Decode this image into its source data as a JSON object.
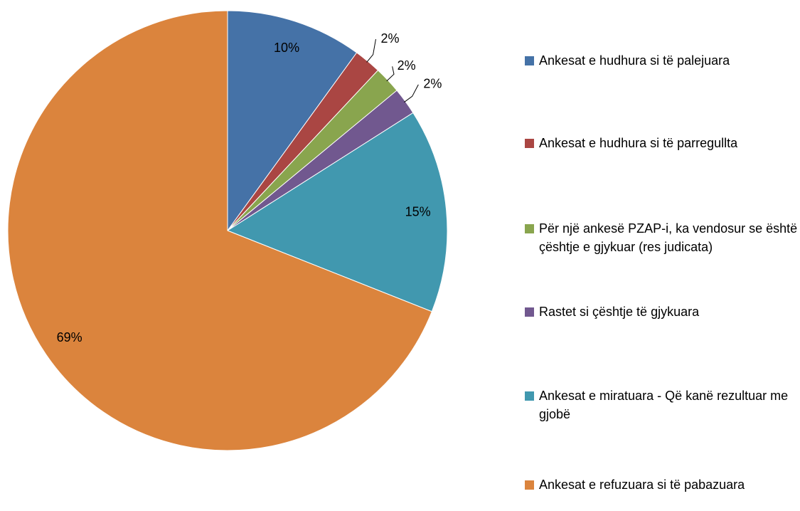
{
  "chart_data": {
    "type": "pie",
    "categories": [
      "Ankesat e hudhura si të palejuara",
      "Ankesat e hudhura si të parregullta",
      "Për një ankesë  PZAP-i, ka vendosur se është çështje e gjykuar (res judicata)",
      "Rastet si çështje të gjykuara",
      "Ankesat e miratuara - Që kanë rezultuar me gjobë",
      "Ankesat e refuzuara si të pabazuara"
    ],
    "values": [
      10,
      2,
      2,
      2,
      15,
      69
    ],
    "value_labels": [
      "10%",
      "2%",
      "2%",
      "2%",
      "15%",
      "69%"
    ],
    "colors": [
      "#4572a7",
      "#aa4643",
      "#89a54e",
      "#71588f",
      "#4198af",
      "#db843d"
    ],
    "legend": "right"
  }
}
